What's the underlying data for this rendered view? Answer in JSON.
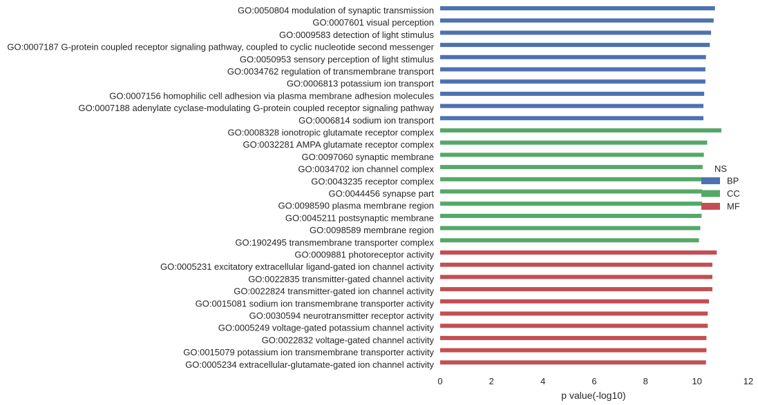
{
  "chart_data": {
    "type": "bar",
    "orientation": "horizontal",
    "title": "",
    "xlabel": "p value(-log10)",
    "ylabel": "",
    "xlim": [
      0,
      12
    ],
    "xticks": [
      0,
      2,
      4,
      6,
      8,
      10,
      12
    ],
    "grid": false,
    "legend": {
      "title": "NS",
      "placement": "center-right",
      "entries": [
        {
          "name": "BP",
          "color": "#4c72b0"
        },
        {
          "name": "CC",
          "color": "#55a868"
        },
        {
          "name": "MF",
          "color": "#c44e52"
        }
      ]
    },
    "categories": [
      {
        "label": "GO:0050804 modulation of synaptic transmission",
        "value": 10.7,
        "group": "BP"
      },
      {
        "label": "GO:0007601 visual perception",
        "value": 10.65,
        "group": "BP"
      },
      {
        "label": "GO:0009583 detection of light stimulus",
        "value": 10.55,
        "group": "BP"
      },
      {
        "label": "GO:0007187 G-protein coupled receptor signaling pathway, coupled to cyclic nucleotide second messenger",
        "value": 10.5,
        "group": "BP"
      },
      {
        "label": "GO:0050953 sensory perception of light stimulus",
        "value": 10.35,
        "group": "BP"
      },
      {
        "label": "GO:0034762 regulation of transmembrane transport",
        "value": 10.33,
        "group": "BP"
      },
      {
        "label": "GO:0006813 potassium ion transport",
        "value": 10.33,
        "group": "BP"
      },
      {
        "label": "GO:0007156 homophilic cell adhesion via plasma membrane adhesion molecules",
        "value": 10.28,
        "group": "BP"
      },
      {
        "label": "GO:0007188 adenylate cyclase-modulating G-protein coupled receptor signaling pathway",
        "value": 10.25,
        "group": "BP"
      },
      {
        "label": "GO:0006814 sodium ion transport",
        "value": 10.25,
        "group": "BP"
      },
      {
        "label": "GO:0008328 ionotropic glutamate receptor complex",
        "value": 10.95,
        "group": "CC"
      },
      {
        "label": "GO:0032281 AMPA glutamate receptor complex",
        "value": 10.4,
        "group": "CC"
      },
      {
        "label": "GO:0097060 synaptic membrane",
        "value": 10.27,
        "group": "CC"
      },
      {
        "label": "GO:0034702 ion channel complex",
        "value": 10.22,
        "group": "CC"
      },
      {
        "label": "GO:0043235 receptor complex",
        "value": 10.2,
        "group": "CC"
      },
      {
        "label": "GO:0044456 synapse part",
        "value": 10.2,
        "group": "CC"
      },
      {
        "label": "GO:0098590 plasma membrane region",
        "value": 10.2,
        "group": "CC"
      },
      {
        "label": "GO:0045211 postsynaptic membrane",
        "value": 10.18,
        "group": "CC"
      },
      {
        "label": "GO:0098589 membrane region",
        "value": 10.13,
        "group": "CC"
      },
      {
        "label": "GO:1902495 transmembrane transporter complex",
        "value": 10.08,
        "group": "CC"
      },
      {
        "label": "GO:0009881 photoreceptor activity",
        "value": 10.77,
        "group": "MF"
      },
      {
        "label": "GO:0005231 excitatory extracellular ligand-gated ion channel activity",
        "value": 10.6,
        "group": "MF"
      },
      {
        "label": "GO:0022835 transmitter-gated channel activity",
        "value": 10.6,
        "group": "MF"
      },
      {
        "label": "GO:0022824 transmitter-gated ion channel activity",
        "value": 10.6,
        "group": "MF"
      },
      {
        "label": "GO:0015081 sodium ion transmembrane transporter activity",
        "value": 10.47,
        "group": "MF"
      },
      {
        "label": "GO:0030594 neurotransmitter receptor activity",
        "value": 10.42,
        "group": "MF"
      },
      {
        "label": "GO:0005249 voltage-gated potassium channel activity",
        "value": 10.42,
        "group": "MF"
      },
      {
        "label": "GO:0022832 voltage-gated channel activity",
        "value": 10.37,
        "group": "MF"
      },
      {
        "label": "GO:0015079 potassium ion transmembrane transporter activity",
        "value": 10.37,
        "group": "MF"
      },
      {
        "label": "GO:0005234 extracellular-glutamate-gated ion channel activity",
        "value": 10.35,
        "group": "MF"
      }
    ]
  }
}
